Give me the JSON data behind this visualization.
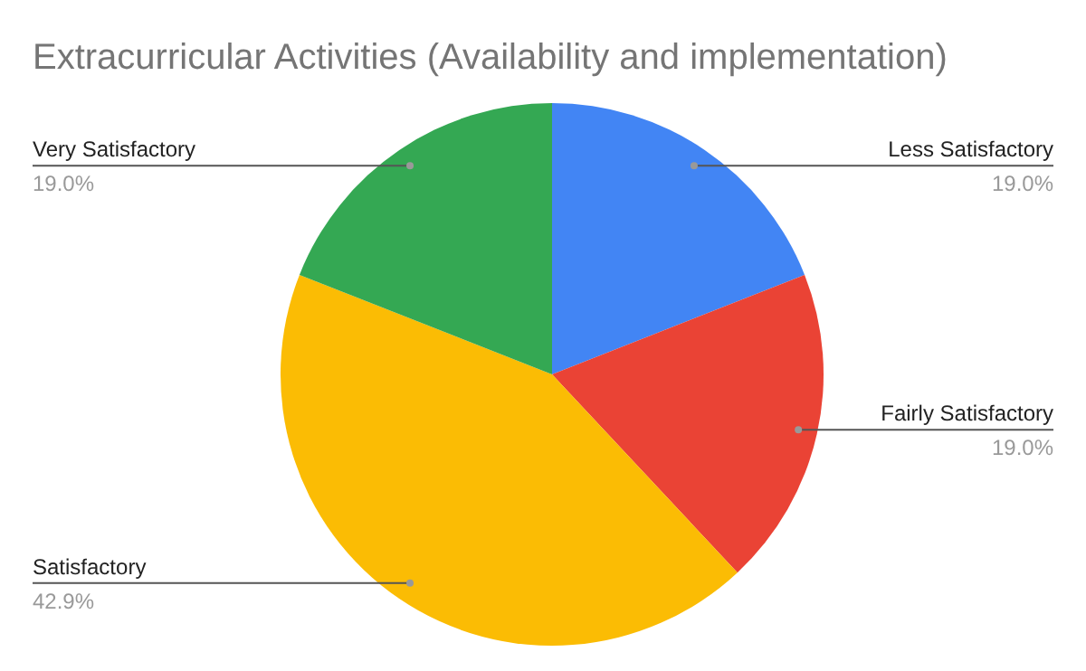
{
  "chart_data": {
    "type": "pie",
    "title": "Extracurricular Activities (Availability and implementation)",
    "categories": [
      "Less Satisfactory",
      "Fairly Satisfactory",
      "Satisfactory",
      "Very Satisfactory"
    ],
    "values": [
      19.0,
      19.0,
      42.9,
      19.0
    ],
    "colors": [
      "#4285f4",
      "#ea4335",
      "#fbbc04",
      "#34a853"
    ],
    "value_labels": [
      "19.0%",
      "19.0%",
      "42.9%",
      "19.0%"
    ]
  }
}
